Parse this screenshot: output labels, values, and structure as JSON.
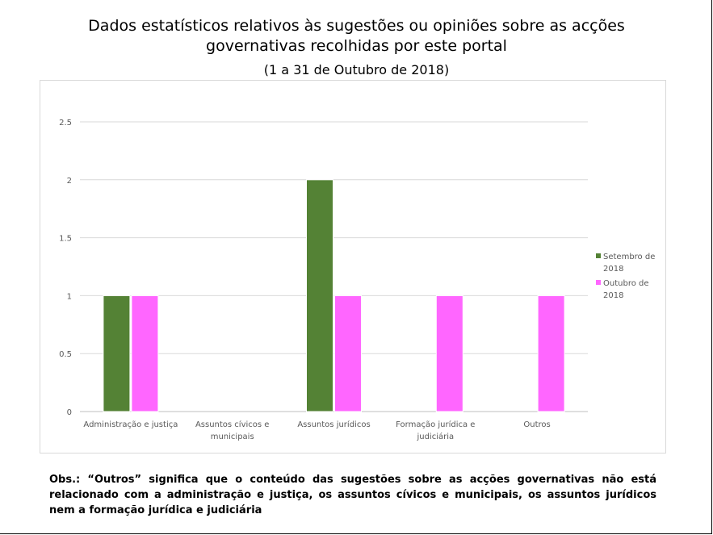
{
  "title_line1": "Dados estatísticos relativos às sugestões ou opiniões sobre as acções",
  "title_line2": "governativas recolhidas por este portal",
  "subtitle": "(1 a 31 de Outubro de 2018)",
  "note": "Obs.: “Outros” significa que o conteúdo das sugestões sobre as acções governativas não está relacionado com a administração e justiça, os assuntos cívicos e municipais, os assuntos jurídicos nem a formação jurídica e judiciária",
  "chart_data": {
    "type": "bar",
    "categories": [
      [
        "Administração e justiça"
      ],
      [
        "Assuntos cívicos e",
        "municipais"
      ],
      [
        "Assuntos jurídicos"
      ],
      [
        "Formação jurídica e",
        "judiciária"
      ],
      [
        "Outros"
      ]
    ],
    "series": [
      {
        "name": "Setembro de 2018",
        "legend_lines": [
          "Setembro de",
          "2018"
        ],
        "color": "#548235",
        "values": [
          1,
          0,
          2,
          0,
          0
        ]
      },
      {
        "name": "Outubro de 2018",
        "legend_lines": [
          "Outubro de",
          "2018"
        ],
        "color": "#ff66ff",
        "values": [
          1,
          0,
          1,
          1,
          1
        ]
      }
    ],
    "yticks": [
      "0",
      "0.5",
      "1",
      "1.5",
      "2",
      "2.5"
    ],
    "ylim": [
      0,
      2.5
    ],
    "grid": true,
    "legend_position": "right"
  }
}
